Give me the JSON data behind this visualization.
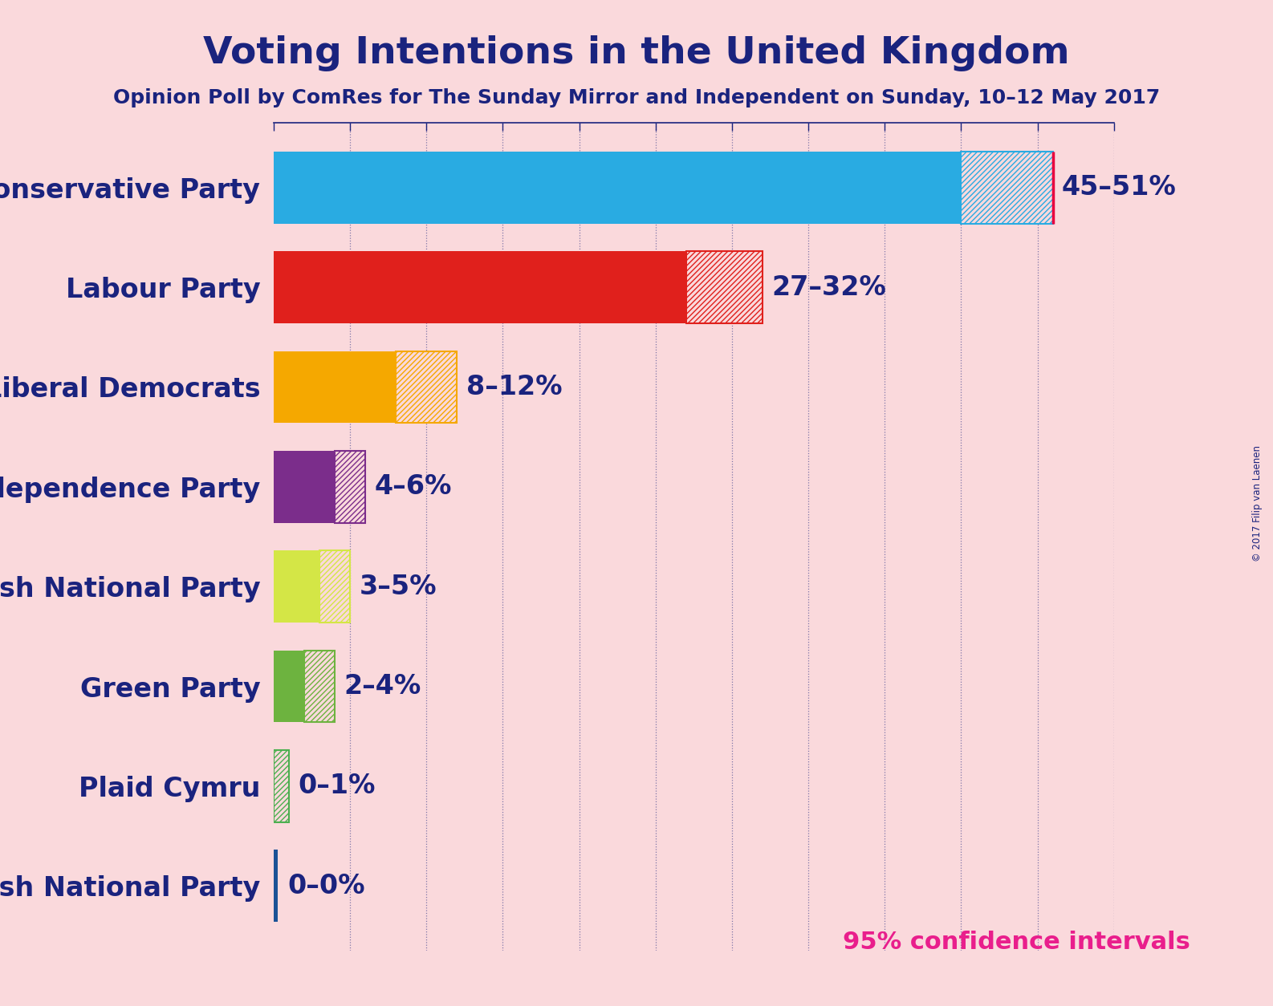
{
  "title": "Voting Intentions in the United Kingdom",
  "subtitle": "Opinion Poll by ComRes for The Sunday Mirror and Independent on Sunday, 10–12 May 2017",
  "copyright": "© 2017 Filip van Laenen",
  "parties": [
    "Conservative Party",
    "Labour Party",
    "Liberal Democrats",
    "UK Independence Party",
    "Scottish National Party",
    "Green Party",
    "Plaid Cymru",
    "British National Party"
  ],
  "low": [
    45,
    27,
    8,
    4,
    3,
    2,
    0,
    0
  ],
  "high": [
    51,
    32,
    12,
    6,
    5,
    4,
    1,
    0
  ],
  "colors": [
    "#29ABE2",
    "#E0201C",
    "#F5A800",
    "#7B2D8B",
    "#D4E646",
    "#6DB33F",
    "#4CAF50",
    "#1A5296"
  ],
  "labels": [
    "45–51%",
    "27–32%",
    "8–12%",
    "4–6%",
    "3–5%",
    "2–4%",
    "0–1%",
    "0–0%"
  ],
  "background_color": "#FAD9DC",
  "text_color": "#1A237E",
  "bar_height": 0.72,
  "xlim_max": 55,
  "confidence_label": "95% confidence intervals",
  "red_vline_color": "#E8003D",
  "grid_line_color": "#1A237E",
  "axis_line_color": "#1A237E",
  "label_fontsize": 24,
  "title_fontsize": 34,
  "subtitle_fontsize": 18,
  "confidence_fontsize": 22,
  "confidence_color": "#E91E8C"
}
